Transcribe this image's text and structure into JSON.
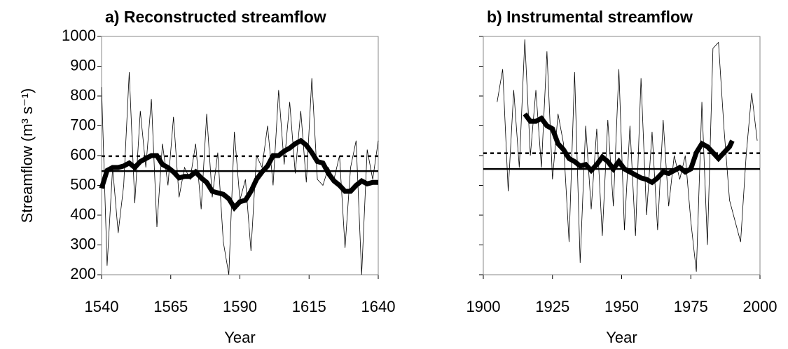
{
  "chart_data": [
    {
      "type": "line",
      "title": "a) Reconstructed streamflow",
      "xlabel": "Year",
      "ylabel": "Streamflow (m³ s⁻¹)",
      "show_ytick_labels": true,
      "xlim": [
        1540,
        1640
      ],
      "xticks": [
        1540,
        1565,
        1590,
        1615,
        1640
      ],
      "ylim": [
        200,
        1000
      ],
      "yticks": [
        200,
        300,
        400,
        500,
        600,
        700,
        800,
        900,
        1000
      ],
      "series": [
        {
          "color": "#000000",
          "line_width": 0.8,
          "dash": false,
          "x": [
            1540,
            1542,
            1544,
            1546,
            1548,
            1550,
            1552,
            1554,
            1556,
            1558,
            1560,
            1562,
            1564,
            1566,
            1568,
            1570,
            1572,
            1574,
            1576,
            1578,
            1580,
            1582,
            1584,
            1586,
            1588,
            1590,
            1592,
            1594,
            1596,
            1598,
            1600,
            1602,
            1604,
            1606,
            1608,
            1610,
            1612,
            1614,
            1616,
            1618,
            1620,
            1622,
            1624,
            1626,
            1628,
            1630,
            1632,
            1634,
            1636,
            1638,
            1640
          ],
          "values": [
            830,
            230,
            560,
            340,
            500,
            880,
            440,
            750,
            560,
            790,
            360,
            640,
            500,
            730,
            460,
            560,
            520,
            640,
            420,
            740,
            460,
            610,
            310,
            200,
            680,
            450,
            520,
            280,
            600,
            560,
            700,
            500,
            820,
            570,
            780,
            540,
            750,
            510,
            860,
            520,
            500,
            560,
            520,
            600,
            290,
            560,
            650,
            200,
            620,
            520,
            650
          ]
        },
        {
          "color": "#000000",
          "line_width": 7,
          "dash": false,
          "x": [
            1540,
            1542,
            1544,
            1546,
            1548,
            1550,
            1552,
            1554,
            1556,
            1558,
            1560,
            1562,
            1564,
            1566,
            1568,
            1570,
            1572,
            1574,
            1576,
            1578,
            1580,
            1582,
            1584,
            1586,
            1588,
            1590,
            1592,
            1594,
            1596,
            1598,
            1600,
            1602,
            1604,
            1606,
            1608,
            1610,
            1612,
            1614,
            1616,
            1618,
            1620,
            1622,
            1624,
            1626,
            1628,
            1630,
            1632,
            1634,
            1636,
            1638,
            1640
          ],
          "values": [
            490,
            550,
            560,
            560,
            565,
            575,
            560,
            580,
            590,
            600,
            600,
            570,
            560,
            545,
            525,
            530,
            530,
            545,
            525,
            510,
            480,
            475,
            470,
            455,
            425,
            445,
            450,
            480,
            520,
            545,
            565,
            600,
            600,
            615,
            625,
            640,
            650,
            635,
            610,
            580,
            575,
            540,
            515,
            500,
            480,
            480,
            500,
            515,
            505,
            510,
            510
          ]
        },
        {
          "color": "#000000",
          "line_width": 2.5,
          "dash": false,
          "x": [
            1540,
            1640
          ],
          "values": [
            548,
            548
          ]
        },
        {
          "color": "#000000",
          "line_width": 2.5,
          "dash": true,
          "x": [
            1540,
            1640
          ],
          "values": [
            598,
            598
          ]
        }
      ]
    },
    {
      "type": "line",
      "title": "b) Instrumental streamflow",
      "xlabel": "Year",
      "show_ytick_labels": false,
      "xlim": [
        1900,
        2000
      ],
      "xticks": [
        1900,
        1925,
        1950,
        1975,
        2000
      ],
      "ylim": [
        200,
        1000
      ],
      "yticks": [
        200,
        300,
        400,
        500,
        600,
        700,
        800,
        900,
        1000
      ],
      "series": [
        {
          "color": "#000000",
          "line_width": 0.8,
          "dash": false,
          "x": [
            1905,
            1907,
            1909,
            1911,
            1913,
            1915,
            1917,
            1919,
            1921,
            1923,
            1925,
            1927,
            1929,
            1931,
            1933,
            1935,
            1937,
            1939,
            1941,
            1943,
            1945,
            1947,
            1949,
            1951,
            1953,
            1955,
            1957,
            1959,
            1961,
            1963,
            1965,
            1967,
            1969,
            1971,
            1973,
            1975,
            1977,
            1979,
            1981,
            1983,
            1985,
            1987,
            1989,
            1991,
            1993,
            1995,
            1997,
            1999
          ],
          "values": [
            780,
            890,
            480,
            820,
            560,
            990,
            600,
            820,
            560,
            950,
            520,
            740,
            640,
            310,
            880,
            240,
            700,
            420,
            690,
            330,
            720,
            430,
            890,
            350,
            700,
            330,
            860,
            400,
            680,
            350,
            720,
            430,
            600,
            520,
            600,
            380,
            210,
            780,
            300,
            960,
            980,
            690,
            450,
            380,
            310,
            600,
            810,
            650
          ]
        },
        {
          "color": "#000000",
          "line_width": 7,
          "dash": false,
          "x": [
            1915,
            1917,
            1919,
            1921,
            1923,
            1925,
            1927,
            1929,
            1931,
            1933,
            1935,
            1937,
            1939,
            1941,
            1943,
            1945,
            1947,
            1949,
            1951,
            1953,
            1955,
            1957,
            1959,
            1961,
            1963,
            1965,
            1967,
            1969,
            1971,
            1973,
            1975,
            1977,
            1979,
            1981,
            1983,
            1985,
            1987,
            1989,
            1990
          ],
          "values": [
            740,
            715,
            715,
            725,
            700,
            690,
            640,
            620,
            590,
            580,
            565,
            570,
            550,
            570,
            595,
            580,
            555,
            580,
            555,
            545,
            535,
            525,
            520,
            510,
            525,
            545,
            540,
            550,
            560,
            545,
            555,
            610,
            640,
            630,
            610,
            590,
            610,
            630,
            650
          ]
        },
        {
          "color": "#000000",
          "line_width": 2.5,
          "dash": false,
          "x": [
            1900,
            2000
          ],
          "values": [
            555,
            555
          ]
        },
        {
          "color": "#000000",
          "line_width": 2.5,
          "dash": true,
          "x": [
            1900,
            2000
          ],
          "values": [
            608,
            608
          ]
        }
      ]
    }
  ]
}
